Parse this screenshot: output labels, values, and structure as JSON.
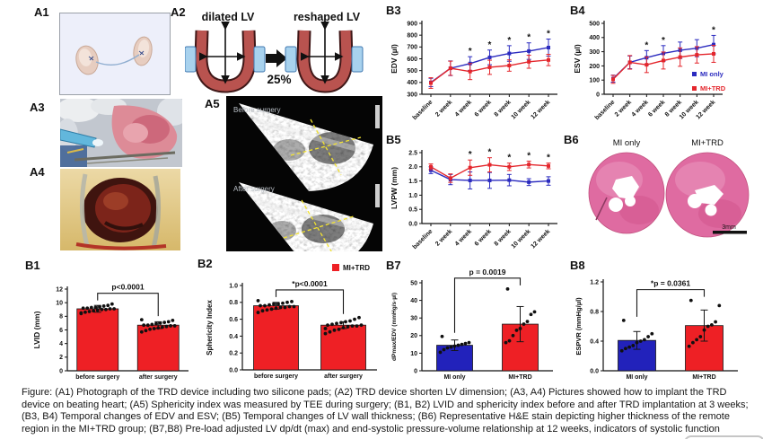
{
  "panel_labels": {
    "a1": "A1",
    "a2": "A2",
    "a3": "A3",
    "a4": "A4",
    "a5": "A5",
    "b1": "B1",
    "b2": "B2",
    "b3": "B3",
    "b4": "B4",
    "b5": "B5",
    "b6": "B6",
    "b7": "B7",
    "b8": "B8"
  },
  "a2": {
    "left_title": "dilated LV",
    "right_title": "reshaped LV",
    "percent": "25%"
  },
  "a5": {
    "top_label": "Before surgery",
    "bottom_label": "After surgery"
  },
  "b6": {
    "left_label": "MI only",
    "right_label": "MI+TRD",
    "scale": "3mm"
  },
  "colors": {
    "mi_only": "#2b2bbf",
    "mi_trd": "#e4262c",
    "bar_red": "#ee2025",
    "bar_blue": "#2222bb",
    "histology_pink": "#df6ba1"
  },
  "caption": "Figure: (A1) Photograph of the TRD device including two silicone pads; (A2) TRD device shorten LV dimension; (A3, A4)  Pictures showed how to implant the TRD device on beating heart; (A5) Sphericity index was measured by TEE during surgery; (B1, B2) LVID and sphericity index before and after TRD implantation at 3 weeks; (B3, B4) Temporal changes of EDV and ESV; (B5) Temporal changes of LV wall thickness; (B6) Representative H&E stain depicting higher thickness of the remote region in the MI+TRD group; (B7,B8) Pre-load adjusted LV dp/dt (max) and end-systolic pressure-volume relationship at 12 weeks, indicators of systolic function",
  "chart_data": [
    {
      "id": "B3",
      "type": "line",
      "ylabel": "EDV (µl)",
      "ylim": [
        300,
        900
      ],
      "yticks": [
        300,
        400,
        500,
        600,
        700,
        800,
        900
      ],
      "ytick_labels": [
        "300",
        "400",
        "500",
        "600",
        "700",
        "800",
        "900"
      ],
      "categories": [
        "baseline",
        "2 week",
        "4 week",
        "6 week",
        "8 week",
        "10 week",
        "12 week"
      ],
      "series": [
        {
          "name": "MI only",
          "color": "#2b2bbf",
          "values": [
            400,
            520,
            560,
            612,
            645,
            665,
            695
          ],
          "errors": [
            35,
            62,
            58,
            62,
            66,
            70,
            72
          ],
          "stars": [
            2,
            3,
            4,
            5,
            6
          ]
        },
        {
          "name": "MI+TRD",
          "color": "#e4262c",
          "values": [
            395,
            520,
            492,
            528,
            543,
            575,
            590
          ],
          "errors": [
            45,
            60,
            68,
            60,
            48,
            55,
            48
          ]
        }
      ]
    },
    {
      "id": "B4",
      "type": "line",
      "ylabel": "ESV (µl)",
      "ylim": [
        0,
        500
      ],
      "yticks": [
        0,
        100,
        200,
        300,
        400,
        500
      ],
      "ytick_labels": [
        "0",
        "100",
        "200",
        "300",
        "400",
        "500"
      ],
      "categories": [
        "baseline",
        "2 week",
        "4 week",
        "6 week",
        "8 week",
        "10 week",
        "12 week"
      ],
      "legend": true,
      "series": [
        {
          "name": "MI only",
          "color": "#2b2bbf",
          "values": [
            110,
            225,
            258,
            288,
            310,
            325,
            350
          ],
          "errors": [
            25,
            45,
            50,
            55,
            58,
            60,
            65
          ],
          "stars": [
            2,
            3,
            6
          ]
        },
        {
          "name": "MI+TRD",
          "color": "#e4262c",
          "values": [
            105,
            225,
            208,
            238,
            262,
            278,
            285
          ],
          "errors": [
            28,
            48,
            55,
            60,
            65,
            58,
            60
          ]
        }
      ]
    },
    {
      "id": "B5",
      "type": "line",
      "ylabel": "LVPW (mm)",
      "ylim": [
        0,
        2.5
      ],
      "yticks": [
        0,
        0.5,
        1,
        1.5,
        2,
        2.5
      ],
      "ytick_labels": [
        "0.0",
        "0.5",
        "1.0",
        "1.5",
        "2.0",
        "2.5"
      ],
      "categories": [
        "baseline",
        "2 week",
        "4 week",
        "6 week",
        "8 week",
        "10 week",
        "12 week"
      ],
      "series": [
        {
          "name": "MI only",
          "color": "#2b2bbf",
          "values": [
            1.88,
            1.55,
            1.52,
            1.52,
            1.53,
            1.46,
            1.5
          ],
          "errors": [
            0.12,
            0.18,
            0.3,
            0.28,
            0.2,
            0.12,
            0.15
          ]
        },
        {
          "name": "MI+TRD",
          "color": "#e4262c",
          "values": [
            2.0,
            1.6,
            1.97,
            2.07,
            2.0,
            2.08,
            2.03
          ],
          "errors": [
            0.1,
            0.15,
            0.27,
            0.25,
            0.13,
            0.12,
            0.1
          ],
          "stars": [
            2,
            3,
            4,
            5,
            6
          ]
        }
      ]
    },
    {
      "id": "B1",
      "type": "bar",
      "ylabel": "LVID (mm)",
      "ylim": [
        0,
        12
      ],
      "yticks": [
        0,
        2,
        4,
        6,
        8,
        10,
        12
      ],
      "ytick_labels": [
        "0",
        "2",
        "4",
        "6",
        "8",
        "10",
        "12"
      ],
      "categories": [
        "before surgery",
        "after surgery"
      ],
      "values": [
        9.1,
        6.7
      ],
      "errors": [
        0.5,
        0.5
      ],
      "bar_colors": [
        "#ee2025",
        "#ee2025"
      ],
      "annotation": "p<0.0001",
      "dots": [
        [
          8.4,
          8.6,
          8.7,
          8.8,
          8.9,
          9.0,
          9.0,
          9.1,
          9.1,
          9.2,
          9.2,
          9.3,
          9.3,
          9.4,
          9.5,
          9.6,
          9.8,
          8.5
        ],
        [
          5.7,
          5.9,
          6.1,
          6.2,
          6.3,
          6.4,
          6.5,
          6.6,
          6.6,
          6.7,
          6.7,
          6.8,
          6.9,
          7.0,
          7.1,
          7.2,
          7.4,
          7.5
        ]
      ]
    },
    {
      "id": "B2",
      "type": "bar",
      "ylabel": "Sphericity Index",
      "ylim": [
        0,
        1
      ],
      "yticks": [
        0,
        0.2,
        0.4,
        0.6,
        0.8,
        1
      ],
      "ytick_labels": [
        "0.0",
        "0.2",
        "0.4",
        "0.6",
        "0.8",
        "1.0"
      ],
      "categories": [
        "before surgery",
        "after surgery"
      ],
      "values": [
        0.76,
        0.53
      ],
      "errors": [
        0.04,
        0.04
      ],
      "bar_colors": [
        "#ee2025",
        "#ee2025"
      ],
      "annotation": "*p<0.0001",
      "legend": {
        "label": "MI+TRD",
        "color": "#ee2025"
      },
      "dots": [
        [
          0.68,
          0.7,
          0.71,
          0.72,
          0.73,
          0.74,
          0.74,
          0.75,
          0.75,
          0.76,
          0.76,
          0.77,
          0.78,
          0.78,
          0.79,
          0.8,
          0.81,
          0.82
        ],
        [
          0.43,
          0.45,
          0.47,
          0.48,
          0.5,
          0.51,
          0.52,
          0.52,
          0.53,
          0.53,
          0.54,
          0.55,
          0.56,
          0.57,
          0.58,
          0.6,
          0.62,
          0.49
        ]
      ]
    },
    {
      "id": "B7",
      "type": "bar",
      "ylabel": "dPmax/EDV (mmHg/s·µl)",
      "ylim": [
        0,
        50
      ],
      "yticks": [
        0,
        10,
        20,
        30,
        40,
        50
      ],
      "ytick_labels": [
        "0",
        "10",
        "20",
        "30",
        "40",
        "50"
      ],
      "categories": [
        "MI only",
        "MI+TRD"
      ],
      "values": [
        14.5,
        26.5
      ],
      "errors": [
        3,
        10
      ],
      "bar_colors": [
        "#2222bb",
        "#ee2025"
      ],
      "annotation": "p = 0.0019",
      "dots": [
        [
          10.5,
          12,
          13,
          13.5,
          14,
          14.5,
          15,
          15.5,
          16,
          19.5
        ],
        [
          16,
          17,
          20,
          23,
          24,
          26.5,
          28,
          32,
          33.5,
          46.5
        ]
      ]
    },
    {
      "id": "B8",
      "type": "bar",
      "ylabel": "ESPVR (mmHg/µl)",
      "ylim": [
        0,
        1.2
      ],
      "yticks": [
        0,
        0.4,
        0.8,
        1.2
      ],
      "ytick_labels": [
        "0.0",
        "0.4",
        "0.8",
        "1.2"
      ],
      "categories": [
        "MI only",
        "MI+TRD"
      ],
      "values": [
        0.41,
        0.61
      ],
      "errors": [
        0.12,
        0.21
      ],
      "bar_colors": [
        "#2222bb",
        "#ee2025"
      ],
      "annotation": "*p = 0.0361",
      "dots": [
        [
          0.27,
          0.3,
          0.32,
          0.34,
          0.38,
          0.4,
          0.42,
          0.46,
          0.5,
          0.68
        ],
        [
          0.33,
          0.38,
          0.42,
          0.46,
          0.55,
          0.6,
          0.62,
          0.66,
          0.88,
          0.95
        ]
      ]
    }
  ]
}
